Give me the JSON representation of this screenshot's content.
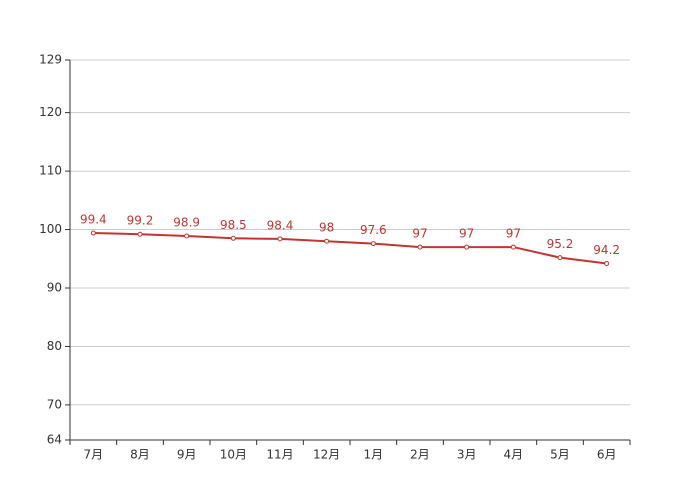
{
  "chart_data": {
    "type": "line",
    "categories": [
      "7月",
      "8月",
      "9月",
      "10月",
      "11月",
      "12月",
      "1月",
      "2月",
      "3月",
      "4月",
      "5月",
      "6月"
    ],
    "values": [
      99.4,
      99.2,
      98.9,
      98.5,
      98.4,
      98,
      97.6,
      97,
      97,
      97,
      95.2,
      94.2
    ],
    "color": "#c23531",
    "ylim": [
      64,
      129
    ],
    "yticks": [
      64,
      70,
      80,
      90,
      100,
      110,
      120,
      129
    ],
    "grid": true
  }
}
